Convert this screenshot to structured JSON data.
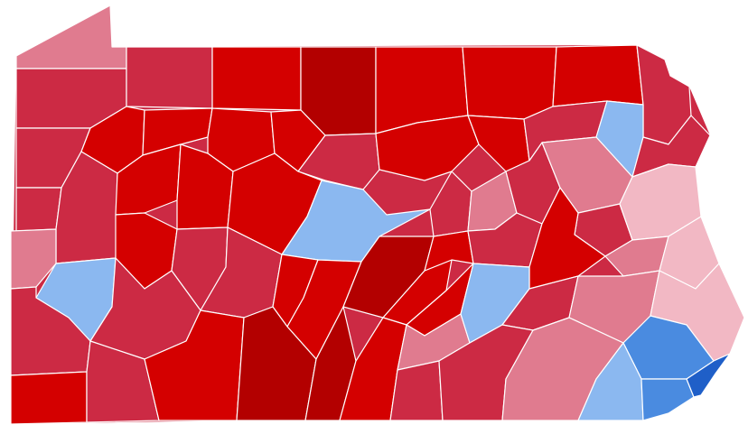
{
  "map": {
    "region": "Pennsylvania",
    "legend": {
      "solid-r": "#b30000",
      "strong-r": "#d40000",
      "likely-r": "#cc2a44",
      "lean-r": "#e07b8f",
      "tilt-r": "#f2b8c4",
      "tilt-d": "#8bb8f0",
      "lean-d": "#4a8be0",
      "strong-d": "#1f5fc8"
    },
    "counties": [
      {
        "id": "erie",
        "shade": "lean-r"
      },
      {
        "id": "crawford",
        "shade": "likely-r"
      },
      {
        "id": "warren",
        "shade": "likely-r"
      },
      {
        "id": "mckean",
        "shade": "strong-r"
      },
      {
        "id": "potter",
        "shade": "solid-r"
      },
      {
        "id": "tioga",
        "shade": "strong-r"
      },
      {
        "id": "bradford",
        "shade": "strong-r"
      },
      {
        "id": "susquehanna",
        "shade": "strong-r"
      },
      {
        "id": "wayne",
        "shade": "likely-r"
      },
      {
        "id": "mercer",
        "shade": "likely-r"
      },
      {
        "id": "venango",
        "shade": "strong-r"
      },
      {
        "id": "forest",
        "shade": "strong-r"
      },
      {
        "id": "elk",
        "shade": "strong-r"
      },
      {
        "id": "cameron",
        "shade": "strong-r"
      },
      {
        "id": "clinton",
        "shade": "likely-r"
      },
      {
        "id": "lycoming",
        "shade": "strong-r"
      },
      {
        "id": "sullivan",
        "shade": "strong-r"
      },
      {
        "id": "wyoming",
        "shade": "likely-r"
      },
      {
        "id": "lackawanna",
        "shade": "tilt-d"
      },
      {
        "id": "luzerne",
        "shade": "lean-r"
      },
      {
        "id": "pike",
        "shade": "likely-r"
      },
      {
        "id": "monroe",
        "shade": "tilt-r"
      },
      {
        "id": "lawrence",
        "shade": "likely-r"
      },
      {
        "id": "butler",
        "shade": "likely-r"
      },
      {
        "id": "clarion",
        "shade": "strong-r"
      },
      {
        "id": "jefferson",
        "shade": "strong-r"
      },
      {
        "id": "clearfield",
        "shade": "strong-r"
      },
      {
        "id": "centre",
        "shade": "tilt-d"
      },
      {
        "id": "union",
        "shade": "likely-r"
      },
      {
        "id": "montour",
        "shade": "lean-r"
      },
      {
        "id": "columbia",
        "shade": "likely-r"
      },
      {
        "id": "carbon",
        "shade": "likely-r"
      },
      {
        "id": "northampton",
        "shade": "tilt-r"
      },
      {
        "id": "lehigh",
        "shade": "lean-r"
      },
      {
        "id": "beaver",
        "shade": "lean-r"
      },
      {
        "id": "allegheny",
        "shade": "tilt-d"
      },
      {
        "id": "armstrong",
        "shade": "strong-r"
      },
      {
        "id": "indiana",
        "shade": "likely-r"
      },
      {
        "id": "cambria",
        "shade": "likely-r"
      },
      {
        "id": "blair",
        "shade": "strong-r"
      },
      {
        "id": "huntingdon",
        "shade": "strong-r"
      },
      {
        "id": "mifflin",
        "shade": "solid-r"
      },
      {
        "id": "juniata",
        "shade": "strong-r"
      },
      {
        "id": "snyder",
        "shade": "strong-r"
      },
      {
        "id": "northumberland",
        "shade": "likely-r"
      },
      {
        "id": "schuylkill",
        "shade": "strong-r"
      },
      {
        "id": "berks",
        "shade": "lean-r"
      },
      {
        "id": "bucks",
        "shade": "tilt-r"
      },
      {
        "id": "montgomery",
        "shade": "lean-d"
      },
      {
        "id": "washington",
        "shade": "likely-r"
      },
      {
        "id": "westmoreland",
        "shade": "likely-r"
      },
      {
        "id": "greene",
        "shade": "strong-r"
      },
      {
        "id": "fayette",
        "shade": "likely-r"
      },
      {
        "id": "somerset",
        "shade": "strong-r"
      },
      {
        "id": "bedford",
        "shade": "solid-r"
      },
      {
        "id": "fulton",
        "shade": "solid-r"
      },
      {
        "id": "franklin",
        "shade": "strong-r"
      },
      {
        "id": "perry",
        "shade": "strong-r"
      },
      {
        "id": "cumberland",
        "shade": "lean-r"
      },
      {
        "id": "dauphin",
        "shade": "tilt-d"
      },
      {
        "id": "lebanon",
        "shade": "likely-r"
      },
      {
        "id": "adams",
        "shade": "likely-r"
      },
      {
        "id": "york",
        "shade": "likely-r"
      },
      {
        "id": "lancaster",
        "shade": "lean-r"
      },
      {
        "id": "chester",
        "shade": "tilt-d"
      },
      {
        "id": "delaware",
        "shade": "lean-d"
      },
      {
        "id": "philadelphia",
        "shade": "strong-d"
      }
    ]
  }
}
